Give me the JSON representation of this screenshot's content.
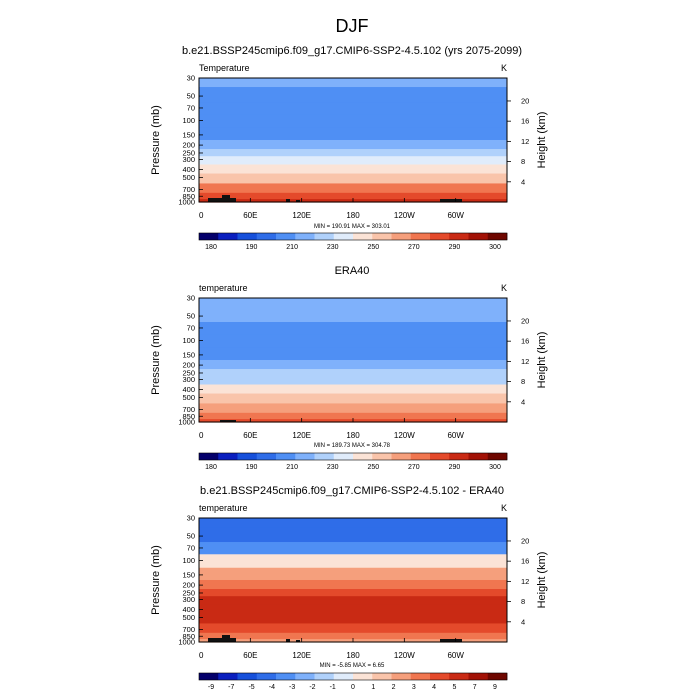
{
  "figure": {
    "main_title": "DJF"
  },
  "colors": {
    "abs_scale": [
      "#04006b",
      "#0a1fbf",
      "#1650db",
      "#2f6de8",
      "#4f8ff4",
      "#7fb1fb",
      "#b0d1fb",
      "#e0ecfb",
      "#fbe3d6",
      "#f9c4aa",
      "#f59f7c",
      "#f07650",
      "#e44a2b",
      "#c92a14",
      "#a21206",
      "#6e0700"
    ],
    "diff_scale": [
      "#04006b",
      "#0a1fbf",
      "#1650db",
      "#2f6de8",
      "#4f8ff4",
      "#7fb1fb",
      "#b0d1fb",
      "#e0ecfb",
      "#fbe3d6",
      "#f9c4aa",
      "#f59f7c",
      "#f07650",
      "#e44a2b",
      "#c92a14",
      "#a21206",
      "#6e0700"
    ],
    "topography": "#111111"
  },
  "chart_data": [
    {
      "type": "heatmap",
      "title": "b.e21.BSSP245cmip6.f09_g17.CMIP6-SSP2-4.5.102 (yrs 2075-2099)",
      "left_label": "Temperature",
      "units": "K",
      "ylabel": "Pressure (mb)",
      "ylabel_right": "Height (km)",
      "xticks": [
        "0",
        "60E",
        "120E",
        "180",
        "120W",
        "60W"
      ],
      "yticks": [
        "30",
        "50",
        "70",
        "100",
        "150",
        "200",
        "250",
        "300",
        "400",
        "500",
        "700",
        "850",
        "1000"
      ],
      "yticks_right": [
        "20",
        "16",
        "12",
        "8",
        "4"
      ],
      "stats": "MIN = 190.91  MAX = 303.01",
      "colorbar_labels": [
        "180",
        "190",
        "210",
        "230",
        "250",
        "270",
        "290",
        "300"
      ],
      "levels": [
        30,
        50,
        70,
        100,
        150,
        200,
        250,
        300,
        400,
        500,
        700,
        850,
        1000
      ],
      "values": [
        213,
        209,
        206,
        201,
        208,
        216,
        225,
        232,
        246,
        257,
        273,
        283,
        290
      ]
    },
    {
      "type": "heatmap",
      "title": "ERA40",
      "left_label": "temperature",
      "units": "K",
      "ylabel": "Pressure (mb)",
      "ylabel_right": "Height (km)",
      "xticks": [
        "0",
        "60E",
        "120E",
        "180",
        "120W",
        "60W"
      ],
      "yticks": [
        "30",
        "50",
        "70",
        "100",
        "150",
        "200",
        "250",
        "300",
        "400",
        "500",
        "700",
        "850",
        "1000"
      ],
      "yticks_right": [
        "20",
        "16",
        "12",
        "8",
        "4"
      ],
      "stats": "MIN = 189.73  MAX = 304.78",
      "colorbar_labels": [
        "180",
        "190",
        "210",
        "230",
        "250",
        "270",
        "290",
        "300"
      ],
      "levels": [
        30,
        50,
        70,
        100,
        150,
        200,
        250,
        300,
        400,
        500,
        700,
        850,
        1000
      ],
      "values": [
        215,
        211,
        208,
        203,
        207,
        213,
        220,
        227,
        242,
        253,
        268,
        279,
        286
      ]
    },
    {
      "type": "heatmap",
      "title": "b.e21.BSSP245cmip6.f09_g17.CMIP6-SSP2-4.5.102 - ERA40",
      "left_label": "temperature",
      "units": "K",
      "ylabel": "Pressure (mb)",
      "ylabel_right": "Height (km)",
      "xticks": [
        "0",
        "60E",
        "120E",
        "180",
        "120W",
        "60W"
      ],
      "yticks": [
        "30",
        "50",
        "70",
        "100",
        "150",
        "200",
        "250",
        "300",
        "400",
        "500",
        "700",
        "850",
        "1000"
      ],
      "yticks_right": [
        "20",
        "16",
        "12",
        "8",
        "4"
      ],
      "stats": "MIN =  -5.85  MAX =   6.65",
      "colorbar_labels": [
        "-9",
        "-7",
        "-5",
        "-4",
        "-3",
        "-2",
        "-1",
        "0",
        "1",
        "2",
        "3",
        "4",
        "5",
        "7",
        "9"
      ],
      "levels": [
        30,
        50,
        70,
        100,
        150,
        200,
        250,
        300,
        400,
        500,
        700,
        850,
        1000
      ],
      "values": [
        -4.5,
        -4.5,
        -3.5,
        0.5,
        2.5,
        3.5,
        4.5,
        5,
        5.5,
        5,
        4,
        3,
        2
      ]
    }
  ]
}
